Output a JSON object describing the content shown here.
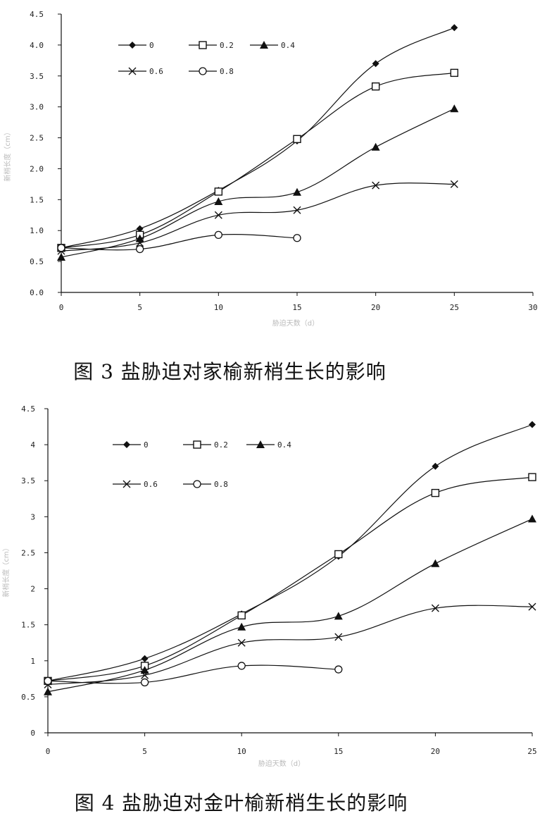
{
  "chart_data": [
    {
      "type": "line",
      "caption": "图 3 盐胁迫对家榆新梢生长的影响",
      "xlabel": "胁迫天数（d）",
      "ylabel": "新梢长度（cm）",
      "xlim": [
        0,
        30
      ],
      "ylim": [
        0,
        4.5
      ],
      "xticks": [
        0,
        5,
        10,
        15,
        20,
        25,
        30
      ],
      "xtick_labels": [
        "0",
        "5",
        "10",
        "15",
        "20",
        "25",
        "30"
      ],
      "yticks": [
        0,
        0.5,
        1,
        1.5,
        2,
        2.5,
        3,
        3.5,
        4,
        4.5
      ],
      "ytick_labels": [
        "0.0",
        "0.5",
        "1.0",
        "1.5",
        "2.0",
        "2.5",
        "3.0",
        "3.5",
        "4.0",
        "4.5"
      ],
      "series": [
        {
          "name": "0",
          "marker": "diamond",
          "x": [
            0,
            5,
            10,
            15,
            20,
            25
          ],
          "y": [
            0.72,
            1.03,
            1.65,
            2.45,
            3.7,
            4.28
          ]
        },
        {
          "name": "0.2",
          "marker": "square",
          "x": [
            0,
            5,
            10,
            15,
            20,
            25
          ],
          "y": [
            0.72,
            0.93,
            1.63,
            2.48,
            3.33,
            3.55
          ]
        },
        {
          "name": "0.4",
          "marker": "triangle",
          "x": [
            0,
            5,
            10,
            15,
            20,
            25
          ],
          "y": [
            0.57,
            0.87,
            1.47,
            1.62,
            2.35,
            2.97
          ]
        },
        {
          "name": "0.6",
          "marker": "cross",
          "x": [
            0,
            5,
            10,
            15,
            20,
            25
          ],
          "y": [
            0.67,
            0.8,
            1.25,
            1.33,
            1.73,
            1.75
          ]
        },
        {
          "name": "0.8",
          "marker": "circle",
          "x": [
            0,
            5,
            10,
            15
          ],
          "y": [
            0.72,
            0.7,
            0.93,
            0.88
          ]
        }
      ]
    },
    {
      "type": "line",
      "caption": "图 4 盐胁迫对金叶榆新梢生长的影响",
      "xlabel": "胁迫天数（d）",
      "ylabel": "新梢长度（cm）",
      "xlim": [
        0,
        25
      ],
      "ylim": [
        0,
        4.5
      ],
      "xticks": [
        0,
        5,
        10,
        15,
        20,
        25
      ],
      "xtick_labels": [
        "0",
        "5",
        "10",
        "15",
        "20",
        "25"
      ],
      "yticks": [
        0,
        0.5,
        1,
        1.5,
        2,
        2.5,
        3,
        3.5,
        4,
        4.5
      ],
      "ytick_labels": [
        "0",
        "0.5",
        "1",
        "1.5",
        "2",
        "2.5",
        "3",
        "3.5",
        "4",
        "4.5"
      ],
      "series": [
        {
          "name": "0",
          "marker": "diamond",
          "x": [
            0,
            5,
            10,
            15,
            20,
            25
          ],
          "y": [
            0.72,
            1.03,
            1.65,
            2.45,
            3.7,
            4.28
          ]
        },
        {
          "name": "0.2",
          "marker": "square",
          "x": [
            0,
            5,
            10,
            15,
            20,
            25
          ],
          "y": [
            0.72,
            0.93,
            1.63,
            2.48,
            3.33,
            3.55
          ]
        },
        {
          "name": "0.4",
          "marker": "triangle",
          "x": [
            0,
            5,
            10,
            15,
            20,
            25
          ],
          "y": [
            0.57,
            0.87,
            1.47,
            1.62,
            2.35,
            2.97
          ]
        },
        {
          "name": "0.6",
          "marker": "cross",
          "x": [
            0,
            5,
            10,
            15,
            20,
            25
          ],
          "y": [
            0.67,
            0.8,
            1.25,
            1.33,
            1.73,
            1.75
          ]
        },
        {
          "name": "0.8",
          "marker": "circle",
          "x": [
            0,
            5,
            10,
            15
          ],
          "y": [
            0.72,
            0.7,
            0.93,
            0.88
          ]
        }
      ]
    }
  ]
}
